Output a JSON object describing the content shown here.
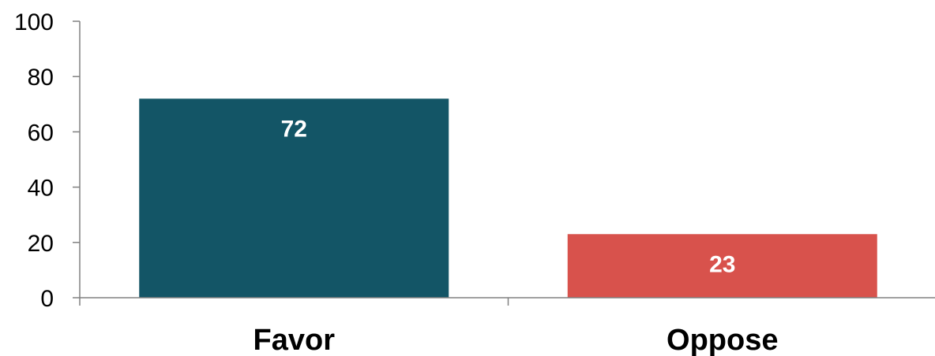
{
  "chart_data": {
    "type": "bar",
    "categories": [
      "Favor",
      "Oppose"
    ],
    "values": [
      72,
      23
    ],
    "data_labels": [
      "72",
      "23"
    ],
    "colors": [
      "#135566",
      "#d8524c"
    ],
    "ylim": [
      0,
      100
    ],
    "yticks": [
      "0",
      "20",
      "40",
      "60",
      "80",
      "100"
    ],
    "grid": false,
    "legend": "none"
  }
}
